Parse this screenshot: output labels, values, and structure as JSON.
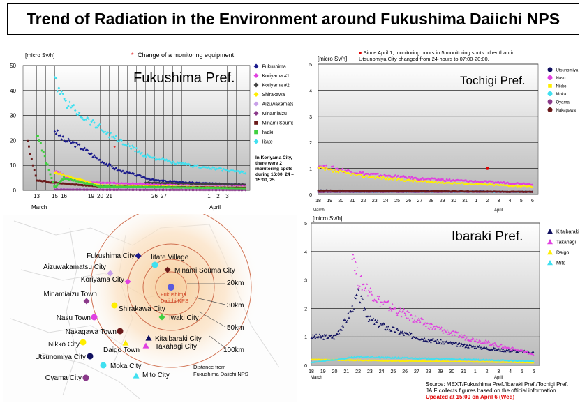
{
  "title": "Trend of Radiation in the Environment around Fukushima Daiichi NPS",
  "colors": {
    "fukushima": "#1a1a8c",
    "koriyama1": "#e040e0",
    "koriyama2": "#404040",
    "shirakawa": "#ffee00",
    "aizu": "#c8a0e8",
    "minamiaizu": "#8a3a8a",
    "minamisoma": "#6a1a1a",
    "iwaki": "#40d040",
    "iitate": "#40e0f0",
    "utsunomiya": "#101060",
    "nasu": "#e040e0",
    "nikko": "#ffee00",
    "moka": "#40e0f0",
    "oyama": "#8a3a8a",
    "nakagawa": "#6a1a1a",
    "kitaibaraki": "#101060",
    "takahagi": "#e040e0",
    "daigo": "#ffee00",
    "mito": "#40e0f0"
  },
  "fukushima_panel": {
    "unit": "[micro Sv/h]",
    "note": "Change of a monitoring equipment",
    "region_label": "Fukushima Pref.",
    "koriyama_note": "In Koriyama City, there were 2 monitoring spots during 16:00, 24 – 15:00, 25",
    "month_label": "March",
    "april_label": "April"
  },
  "tochigi_panel": {
    "unit": "[micro Sv/h]",
    "note": "Since April 1, monitoring hours in 5 monitoring spots other than in Utsunomiya City changed from 24-hours to 07:00-20:00.",
    "region_label": "Tochigi Pref.",
    "month_label": "March",
    "april_label": "April"
  },
  "ibaraki_panel": {
    "unit": "[micro Sv/h]",
    "region_label": "Ibaraki Pref.",
    "month_label": "March",
    "april_label": "April"
  },
  "map": {
    "cities": [
      "Fukushima City",
      "Iitate Village",
      "Aizuwakamatsu City",
      "Minami Souma City",
      "Koriyama City",
      "Minamiaizu Town",
      "Shirakawa City",
      "Nasu Town",
      "Iwaki City",
      "Nakagawa Town",
      "Kitaibaraki City",
      "Nikko City",
      "Daigo Town",
      "Takahagi City",
      "Utsunomiya City",
      "Moka City",
      "Oyama City",
      "Mito City"
    ],
    "plant_label_1": "Fukushima",
    "plant_label_2": "Daiichi NPS",
    "rings": [
      "20km",
      "30km",
      "50km",
      "100km"
    ],
    "distance_note_1": "Distance from",
    "distance_note_2": "Fukushima Daiichi NPS"
  },
  "source": {
    "line1": "Source: MEXT/Fukushima Pref./Ibaraki Pref./Tochigi Pref.",
    "line2": "JAIF collects figures based on the official information.",
    "updated": "Updated at 15:00 on April 6 (Wed)"
  },
  "chart_data": [
    {
      "type": "scatter",
      "title": "Fukushima Pref.",
      "ylabel": "[micro Sv/h]",
      "ylim": [
        0,
        50
      ],
      "yticks": [
        0,
        10,
        20,
        30,
        40,
        50
      ],
      "xticks": [
        "13",
        "15",
        "16",
        "19",
        "20",
        "21",
        "26",
        "27",
        "1",
        "2",
        "3"
      ],
      "series": [
        {
          "name": "Fukushima",
          "x": [
            "Mar 15",
            "Mar 16",
            "Mar 17",
            "Mar 18",
            "Mar 20",
            "Mar 22",
            "Mar 24",
            "Mar 26",
            "Mar 28",
            "Mar 30",
            "Apr 1",
            "Apr 3",
            "Apr 5"
          ],
          "values": [
            24,
            20,
            19,
            17,
            12,
            8,
            6,
            4,
            3.5,
            3,
            2.8,
            2.5,
            2.3
          ]
        },
        {
          "name": "Koriyama #1",
          "x": [
            "Mar 15",
            "Mar 17",
            "Mar 20",
            "Mar 25",
            "Apr 1",
            "Apr 5"
          ],
          "values": [
            8,
            4,
            3,
            2.5,
            2.2,
            2
          ]
        },
        {
          "name": "Koriyama #2",
          "x": [
            "Mar 25",
            "Apr 1",
            "Apr 5"
          ],
          "values": [
            3,
            2.5,
            2.3
          ]
        },
        {
          "name": "Shirakawa",
          "x": [
            "Mar 15",
            "Mar 20",
            "Apr 1",
            "Apr 5"
          ],
          "values": [
            7,
            2,
            1.2,
            1
          ]
        },
        {
          "name": "Aizuwakamatsu",
          "x": [
            "Mar 15",
            "Mar 20",
            "Apr 5"
          ],
          "values": [
            0.6,
            0.3,
            0.2
          ]
        },
        {
          "name": "Minamiaizu",
          "x": [
            "Mar 15",
            "Mar 20",
            "Apr 5"
          ],
          "values": [
            0.3,
            0.2,
            0.1
          ]
        },
        {
          "name": "Minami Souma",
          "x": [
            "Mar 12",
            "Mar 13",
            "Mar 15",
            "Mar 20",
            "Apr 5"
          ],
          "values": [
            20,
            4,
            3,
            1.5,
            1
          ]
        },
        {
          "name": "Iwaki",
          "x": [
            "Mar 13",
            "Mar 15",
            "Mar 16",
            "Mar 20",
            "Apr 5"
          ],
          "values": [
            23,
            1,
            5,
            1.5,
            0.8
          ]
        },
        {
          "name": "Iitate",
          "x": [
            "Mar 15",
            "Mar 16",
            "Mar 18",
            "Mar 20",
            "Mar 22",
            "Mar 25",
            "Mar 28",
            "Apr 1",
            "Apr 5"
          ],
          "values": [
            44,
            36,
            30,
            25,
            20,
            14,
            11,
            9,
            7
          ]
        }
      ]
    },
    {
      "type": "scatter",
      "title": "Tochigi Pref.",
      "ylabel": "[micro Sv/h]",
      "ylim": [
        0,
        5
      ],
      "yticks": [
        0,
        1,
        2,
        3,
        4,
        5
      ],
      "xticks": [
        "18",
        "19",
        "20",
        "21",
        "22",
        "23",
        "24",
        "25",
        "26",
        "27",
        "28",
        "29",
        "30",
        "31",
        "1",
        "2",
        "3",
        "4",
        "5",
        "6"
      ],
      "series": [
        {
          "name": "Utsunomiya",
          "x": [
            "Mar 18",
            "Apr 6"
          ],
          "values": [
            0.15,
            0.1
          ]
        },
        {
          "name": "Nasu",
          "x": [
            "Mar 18",
            "Mar 22",
            "Mar 27",
            "Apr 1",
            "Apr 6"
          ],
          "values": [
            1.1,
            0.8,
            0.6,
            0.5,
            0.4
          ]
        },
        {
          "name": "Nikko",
          "x": [
            "Mar 18",
            "Mar 22",
            "Mar 27",
            "Apr 1",
            "Apr 6"
          ],
          "values": [
            1.0,
            0.7,
            0.5,
            0.4,
            0.3
          ]
        },
        {
          "name": "Moka",
          "x": [
            "Mar 18",
            "Apr 6"
          ],
          "values": [
            0.1,
            0.1
          ]
        },
        {
          "name": "Oyama",
          "x": [
            "Mar 18",
            "Apr 6"
          ],
          "values": [
            0.1,
            0.1
          ]
        },
        {
          "name": "Nakagawa",
          "x": [
            "Mar 18",
            "Apr 6"
          ],
          "values": [
            0.15,
            0.1
          ]
        }
      ]
    },
    {
      "type": "scatter",
      "title": "Ibaraki Pref.",
      "ylabel": "[micro Sv/h]",
      "ylim": [
        0,
        5
      ],
      "yticks": [
        0,
        1,
        2,
        3,
        4,
        5
      ],
      "xticks": [
        "18",
        "19",
        "20",
        "21",
        "22",
        "23",
        "24",
        "25",
        "26",
        "27",
        "28",
        "29",
        "30",
        "31",
        "1",
        "2",
        "3",
        "4",
        "5",
        "6"
      ],
      "series": [
        {
          "name": "Kitaibaraki",
          "x": [
            "Mar 18",
            "Mar 20",
            "Mar 21",
            "Mar 21.5",
            "Mar 22",
            "Mar 23",
            "Mar 24",
            "Mar 26",
            "Mar 28",
            "Mar 31",
            "Apr 3",
            "Apr 6"
          ],
          "values": [
            1.0,
            1.0,
            1.6,
            2.0,
            2.5,
            1.6,
            1.4,
            1.1,
            0.9,
            0.7,
            0.55,
            0.45
          ]
        },
        {
          "name": "Takahagi",
          "x": [
            "Mar 21.5",
            "Mar 22",
            "Mar 23",
            "Mar 24",
            "Mar 26",
            "Mar 28",
            "Mar 31",
            "Apr 3",
            "Apr 6"
          ],
          "values": [
            4.1,
            3.0,
            2.6,
            2.2,
            1.8,
            1.4,
            1.0,
            0.7,
            0.4
          ]
        },
        {
          "name": "Daigo",
          "x": [
            "Mar 18",
            "Apr 6"
          ],
          "values": [
            0.2,
            0.1
          ]
        },
        {
          "name": "Mito",
          "x": [
            "Mar 18",
            "Mar 22",
            "Apr 6"
          ],
          "values": [
            0.1,
            0.3,
            0.15
          ]
        }
      ]
    }
  ]
}
